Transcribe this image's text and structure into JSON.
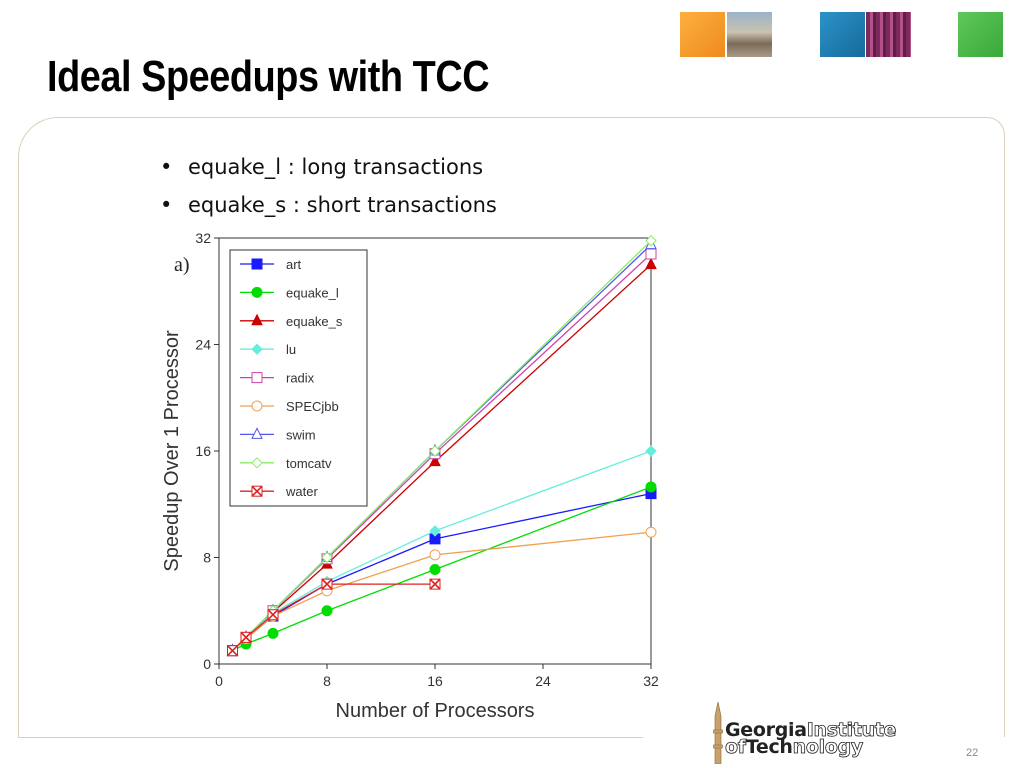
{
  "slide": {
    "title": "Ideal Speedups with TCC",
    "bullets": [
      "equake_l : long transactions",
      "equake_s : short transactions"
    ],
    "page_number": "22",
    "logo": {
      "line1_bold": "Georgia",
      "line1_outline": "Institute",
      "line2_outline": "of",
      "line2_bold": "Tech",
      "line2_outline_end": "nology"
    },
    "tile_colors": [
      "#f39a2c",
      "#1f7fb3",
      "#4cb848"
    ]
  },
  "chart_data": {
    "type": "line",
    "panel_label": "a)",
    "xlabel": "Number of Processors",
    "ylabel": "Speedup Over 1 Processor",
    "xlim": [
      0,
      32
    ],
    "ylim": [
      0,
      32
    ],
    "xticks": [
      0,
      8,
      16,
      24,
      32
    ],
    "yticks": [
      0,
      8,
      16,
      24,
      32
    ],
    "legend_position": "top-left",
    "series": [
      {
        "name": "art",
        "color": "#1a1aff",
        "marker": "square-filled",
        "x": [
          1,
          2,
          4,
          8,
          16,
          32
        ],
        "y": [
          1.0,
          1.9,
          3.6,
          6.0,
          9.4,
          12.8
        ]
      },
      {
        "name": "equake_l",
        "color": "#00dd00",
        "marker": "circle-filled",
        "x": [
          1,
          2,
          4,
          8,
          16,
          32
        ],
        "y": [
          1.0,
          1.5,
          2.3,
          4.0,
          7.1,
          13.3
        ]
      },
      {
        "name": "equake_s",
        "color": "#cc0000",
        "marker": "triangle-filled",
        "x": [
          1,
          2,
          4,
          8,
          16,
          32
        ],
        "y": [
          1.0,
          2.0,
          3.9,
          7.5,
          15.2,
          30.0
        ]
      },
      {
        "name": "lu",
        "color": "#66eedd",
        "marker": "diamond-filled",
        "x": [
          1,
          2,
          4,
          8,
          16,
          32
        ],
        "y": [
          1.0,
          2.0,
          3.8,
          6.2,
          10.0,
          16.0
        ]
      },
      {
        "name": "radix",
        "color": "#cc44aa",
        "marker": "square-open",
        "x": [
          1,
          2,
          4,
          8,
          16,
          32
        ],
        "y": [
          1.0,
          2.0,
          4.0,
          7.9,
          15.8,
          30.8
        ]
      },
      {
        "name": "SPECjbb",
        "color": "#f0a050",
        "marker": "circle-open",
        "x": [
          1,
          2,
          4,
          8,
          16,
          32
        ],
        "y": [
          1.0,
          1.9,
          3.6,
          5.5,
          8.2,
          9.9
        ]
      },
      {
        "name": "swim",
        "color": "#5555ee",
        "marker": "triangle-open",
        "x": [
          1,
          2,
          4,
          8,
          16,
          32
        ],
        "y": [
          1.0,
          2.0,
          4.0,
          8.0,
          16.0,
          31.5
        ]
      },
      {
        "name": "tomcatv",
        "color": "#88ee66",
        "marker": "diamond-open",
        "x": [
          1,
          2,
          4,
          8,
          16,
          32
        ],
        "y": [
          1.0,
          2.0,
          4.0,
          8.0,
          16.0,
          31.8
        ]
      },
      {
        "name": "water",
        "color": "#dd2222",
        "marker": "x-box",
        "x": [
          1,
          2,
          4,
          8,
          16
        ],
        "y": [
          1.0,
          2.0,
          3.7,
          6.0,
          6.0
        ]
      }
    ]
  }
}
